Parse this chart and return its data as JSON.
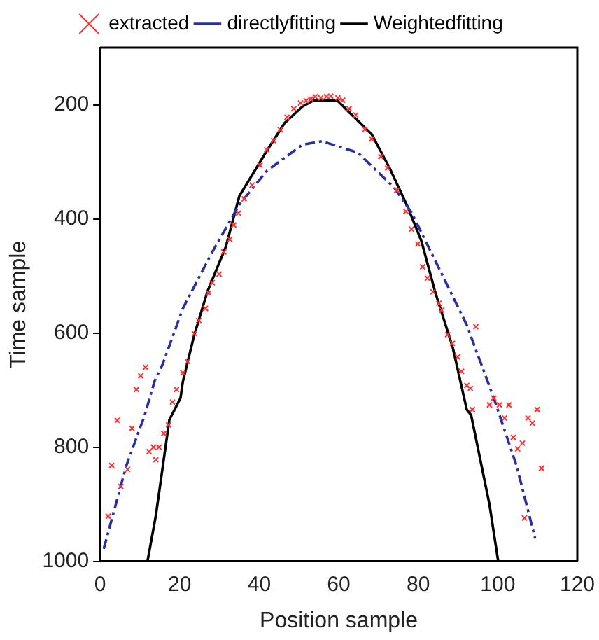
{
  "chart_data": {
    "type": "scatter",
    "xlabel": "Position sample",
    "ylabel": "Time sample",
    "xlim": [
      0,
      120
    ],
    "xticks": [
      0,
      20,
      40,
      60,
      80,
      100,
      120
    ],
    "ylim": [
      1000,
      100
    ],
    "yticks": [
      200,
      400,
      600,
      800,
      1000
    ],
    "grid": false,
    "legend": "top",
    "series": [
      {
        "name": "extracted",
        "type": "scatter",
        "color": "#ff3333",
        "marker": "cross",
        "x": [
          2,
          2.9,
          4.3,
          5.2,
          6.9,
          8,
          9.1,
          10.2,
          11.4,
          12.3,
          13.4,
          14,
          14.8,
          16,
          17.2,
          18.2,
          19.2,
          20.8,
          22,
          23.7,
          24.8,
          26.5,
          27.3,
          28.2,
          29.9,
          31.1,
          32.6,
          33.6,
          34.8,
          36.2,
          38.2,
          40.2,
          41.9,
          43.6,
          45.3,
          47,
          48.7,
          50.4,
          51.8,
          53,
          54.1,
          55.5,
          56.9,
          58,
          59.8,
          61,
          62.6,
          64.3,
          66.6,
          68.3,
          70.6,
          72.3,
          74.6,
          76.9,
          78.3,
          79.9,
          81.1,
          82.3,
          83.7,
          85.2,
          85.9,
          87.4,
          88.6,
          89.9,
          90.9,
          92.2,
          93.1,
          93.6,
          94.5,
          97.9,
          99,
          100.4,
          101.7,
          102.8,
          103.9,
          105,
          106.2,
          106.7,
          107.6,
          108.7,
          109.9,
          111
        ],
        "values": [
          921,
          832,
          753,
          869,
          839,
          767,
          699,
          675,
          660,
          808,
          800,
          822,
          800,
          776,
          761,
          721,
          699,
          670,
          650,
          601,
          578,
          557,
          530,
          512,
          497,
          458,
          436,
          411,
          390,
          365,
          341,
          306,
          279,
          263,
          244,
          222,
          207,
          197,
          193,
          190,
          186,
          188,
          186,
          185,
          188,
          192,
          207,
          218,
          243,
          260,
          291,
          311,
          350,
          387,
          418,
          444,
          484,
          504,
          528,
          548,
          560,
          603,
          618,
          642,
          667,
          692,
          697,
          734,
          589,
          726,
          714,
          726,
          749,
          726,
          783,
          803,
          793,
          924,
          749,
          758,
          734,
          837
        ]
      },
      {
        "name": "directlyfitting",
        "type": "line",
        "color": "#2a2ea0",
        "marker": "none",
        "line_style": "dashed",
        "x": [
          0.9,
          6.6,
          11.2,
          13.7,
          15.7,
          20.8,
          28.2,
          35,
          41.9,
          50.9,
          55.8,
          64.8,
          73.9,
          78.4,
          85.3,
          92.2,
          99,
          104.7,
          109.4
        ],
        "values": [
          978,
          832,
          744,
          684,
          655,
          557,
          458,
          375,
          316,
          270,
          264,
          284,
          345,
          390,
          488,
          586,
          714,
          832,
          960
        ]
      },
      {
        "name": "Weightedfitting",
        "type": "line",
        "color": "#000000",
        "marker": "none",
        "line_style": "solid",
        "x": [
          11.9,
          14,
          17.4,
          20.2,
          20.8,
          23.6,
          27,
          31.6,
          35,
          41.9,
          46.4,
          50.9,
          53.5,
          59.7,
          62.6,
          68.3,
          72.8,
          77.4,
          80.8,
          84.2,
          88.7,
          92.2,
          93.3,
          97.9,
          100.1
        ],
        "values": [
          1000,
          920,
          752,
          714,
          685,
          605,
          527,
          449,
          360,
          281,
          232,
          203,
          193,
          193,
          213,
          252,
          311,
          380,
          439,
          527,
          626,
          734,
          744,
          900,
          1000
        ]
      }
    ]
  }
}
